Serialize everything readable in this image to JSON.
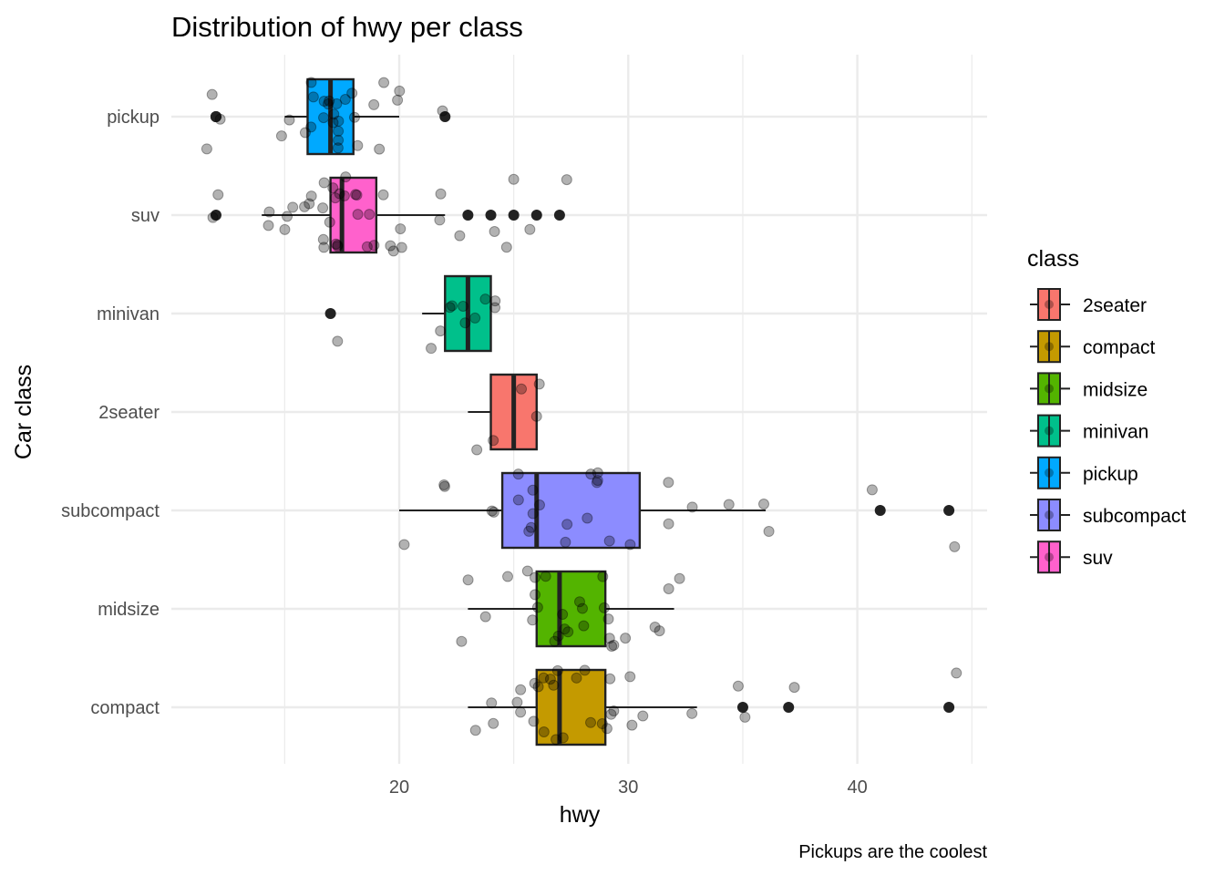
{
  "chart_data": {
    "type": "boxplot",
    "title": "Distribution of hwy per class",
    "xlabel": "hwy",
    "ylabel": "Car class",
    "caption": "Pickups are the coolest",
    "xlim": [
      10.5,
      45.5
    ],
    "xticks": [
      20,
      30,
      40
    ],
    "grid": true,
    "legend": {
      "title": "class",
      "placement": "right"
    },
    "categories": [
      "pickup",
      "suv",
      "minivan",
      "2seater",
      "subcompact",
      "midsize",
      "compact"
    ],
    "series": [
      {
        "name": "pickup",
        "color": "#00A9FF",
        "min": 15,
        "q1": 16,
        "median": 17,
        "q3": 18,
        "max": 20,
        "outliers": [
          12,
          12,
          12,
          22
        ],
        "points": [
          12,
          12,
          12,
          15,
          15,
          16,
          16,
          16,
          16,
          17,
          17,
          17,
          17,
          17,
          17,
          17,
          17,
          17,
          17,
          17,
          18,
          18,
          18,
          18,
          19,
          19,
          19,
          20,
          20,
          22
        ]
      },
      {
        "name": "suv",
        "color": "#FF61CC",
        "min": 14,
        "q1": 17,
        "median": 17.5,
        "q3": 19,
        "max": 22,
        "outliers": [
          12,
          23,
          24,
          25,
          26,
          27
        ],
        "points": [
          12,
          12,
          14,
          14,
          15,
          15,
          15,
          16,
          16,
          16,
          17,
          17,
          17,
          17,
          17,
          17,
          17,
          17,
          17,
          17,
          17,
          18,
          18,
          18,
          18,
          18,
          19,
          19,
          19,
          19,
          20,
          20,
          20,
          20,
          22,
          22,
          23,
          24,
          25,
          25,
          26,
          27
        ]
      },
      {
        "name": "minivan",
        "color": "#00C08B",
        "min": 21,
        "q1": 22,
        "median": 23,
        "q3": 24,
        "max": 24,
        "outliers": [
          17
        ],
        "points": [
          17,
          21,
          22,
          22,
          22,
          23,
          23,
          23,
          24,
          24,
          24
        ]
      },
      {
        "name": "2seater",
        "color": "#F8766D",
        "min": 23,
        "q1": 24,
        "median": 25,
        "q3": 26,
        "max": 26,
        "outliers": [],
        "points": [
          23,
          24,
          25,
          26,
          26
        ]
      },
      {
        "name": "subcompact",
        "color": "#8C8CFF",
        "min": 20,
        "q1": 24.5,
        "median": 26,
        "q3": 30.5,
        "max": 36,
        "outliers": [
          41,
          44
        ],
        "points": [
          20,
          22,
          22,
          24,
          24,
          25,
          25,
          26,
          26,
          26,
          26,
          26,
          27,
          27,
          28,
          28,
          29,
          29,
          29,
          29,
          30,
          32,
          32,
          33,
          34,
          36,
          36,
          41,
          44
        ]
      },
      {
        "name": "midsize",
        "color": "#53B400",
        "min": 23,
        "q1": 26,
        "median": 27,
        "q3": 29,
        "max": 32,
        "outliers": [],
        "points": [
          23,
          23,
          24,
          25,
          26,
          26,
          26,
          26,
          26,
          26,
          27,
          27,
          27,
          27,
          27,
          28,
          28,
          28,
          29,
          29,
          29,
          29,
          29,
          29,
          30,
          31,
          31,
          32,
          32
        ]
      },
      {
        "name": "compact",
        "color": "#C49A00",
        "min": 23,
        "q1": 26,
        "median": 27,
        "q3": 29,
        "max": 33,
        "outliers": [
          35,
          37,
          44
        ],
        "points": [
          23,
          24,
          24,
          25,
          25,
          25,
          26,
          26,
          26,
          26,
          26,
          27,
          27,
          27,
          27,
          27,
          28,
          28,
          28,
          29,
          29,
          29,
          29,
          29,
          30,
          30,
          31,
          33,
          35,
          35,
          37,
          44
        ]
      }
    ]
  }
}
